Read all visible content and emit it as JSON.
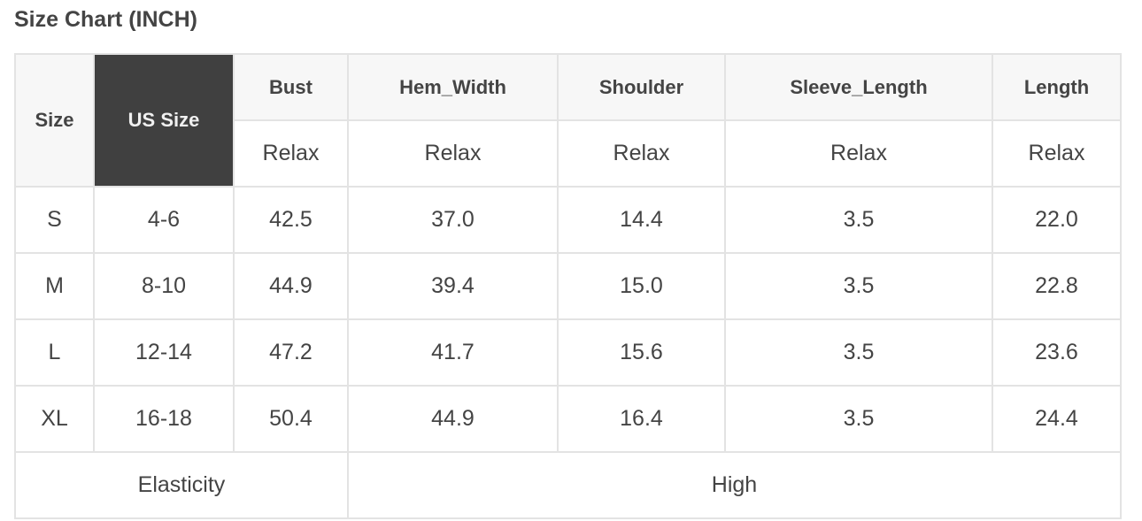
{
  "title": "Size Chart (INCH)",
  "table": {
    "headers": [
      "Size",
      "US Size",
      "Bust",
      "Hem_Width",
      "Shoulder",
      "Sleeve_Length",
      "Length"
    ],
    "subheaders": [
      "Relax",
      "Relax",
      "Relax",
      "Relax",
      "Relax"
    ],
    "rows": [
      [
        "S",
        "4-6",
        "42.5",
        "37.0",
        "14.4",
        "3.5",
        "22.0"
      ],
      [
        "M",
        "8-10",
        "44.9",
        "39.4",
        "15.0",
        "3.5",
        "22.8"
      ],
      [
        "L",
        "12-14",
        "47.2",
        "41.7",
        "15.6",
        "3.5",
        "23.6"
      ],
      [
        "XL",
        "16-18",
        "50.4",
        "44.9",
        "16.4",
        "3.5",
        "24.4"
      ]
    ],
    "footer": {
      "label": "Elasticity",
      "value": "High"
    }
  },
  "colors": {
    "us_size_header_bg": "#404040",
    "header_bg": "#f7f7f7",
    "border": "#e3e3e3"
  }
}
